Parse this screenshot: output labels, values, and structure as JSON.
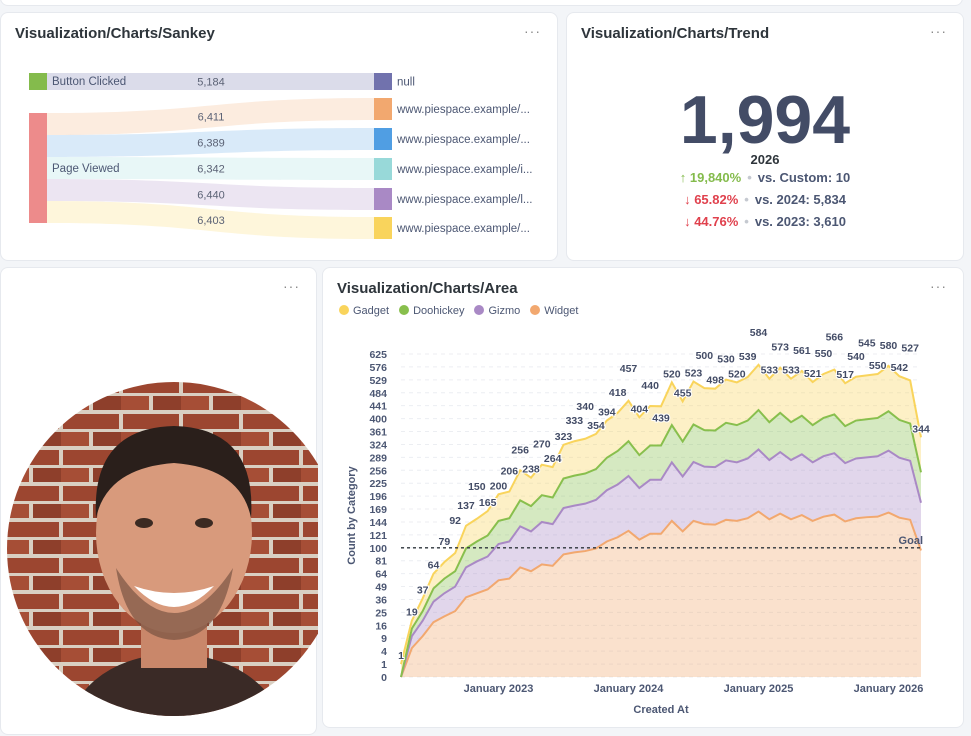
{
  "sankey": {
    "title": "Visualization/Charts/Sankey",
    "menu_icon": "ellipsis-icon",
    "sources": [
      {
        "label": "Button Clicked",
        "color": "#84bb4c"
      },
      {
        "label": "Page Viewed",
        "color": "#ed8b8b"
      }
    ],
    "targets": [
      {
        "label": "null",
        "color": "#7172ad"
      },
      {
        "label": "www.piespace.example/...",
        "color": "#f2a86f"
      },
      {
        "label": "www.piespace.example/...",
        "color": "#509ee3"
      },
      {
        "label": "www.piespace.example/i...",
        "color": "#98d9d9"
      },
      {
        "label": "www.piespace.example/l...",
        "color": "#a989c5"
      },
      {
        "label": "www.piespace.example/...",
        "color": "#f9d45c"
      }
    ],
    "links": [
      {
        "source": 0,
        "target": 0,
        "value": "5,184"
      },
      {
        "source": 1,
        "target": 1,
        "value": "6,411"
      },
      {
        "source": 1,
        "target": 2,
        "value": "6,389"
      },
      {
        "source": 1,
        "target": 3,
        "value": "6,342"
      },
      {
        "source": 1,
        "target": 4,
        "value": "6,440"
      },
      {
        "source": 1,
        "target": 5,
        "value": "6,403"
      }
    ]
  },
  "trend": {
    "title": "Visualization/Charts/Trend",
    "value": "1,994",
    "period": "2026",
    "comparisons": [
      {
        "direction": "up",
        "change": "19,840%",
        "label": "vs. Custom: 10",
        "color": "#84bb4c"
      },
      {
        "direction": "down",
        "change": "65.82%",
        "label": "vs. 2024: 5,834",
        "color": "#e0414d"
      },
      {
        "direction": "down",
        "change": "44.76%",
        "label": "vs. 2023: 3,610",
        "color": "#e0414d"
      }
    ]
  },
  "photo": {
    "alt": "portrait photo of smiling man in front of brick wall"
  },
  "area": {
    "title": "Visualization/Charts/Area"
  },
  "chart_data": {
    "type": "area",
    "stacked": true,
    "title": "Visualization/Charts/Area",
    "xlabel": "Created At",
    "ylabel": "Count by Category",
    "yscale": "sqrt",
    "ylim": [
      0,
      625
    ],
    "yticks": [
      0,
      1,
      4,
      9,
      16,
      25,
      36,
      49,
      64,
      81,
      100,
      121,
      144,
      169,
      196,
      225,
      256,
      289,
      324,
      361,
      400,
      441,
      484,
      529,
      576,
      625
    ],
    "xticks": [
      {
        "x": "2023-01",
        "label": "January 2023"
      },
      {
        "x": "2024-01",
        "label": "January 2024"
      },
      {
        "x": "2025-01",
        "label": "January 2025"
      },
      {
        "x": "2026-01",
        "label": "January 2026"
      }
    ],
    "grid": true,
    "legend": "top-left",
    "goal": {
      "value": 100,
      "label": "Goal"
    },
    "x": [
      "2022-04",
      "2022-05",
      "2022-06",
      "2022-07",
      "2022-08",
      "2022-09",
      "2022-10",
      "2022-11",
      "2022-12",
      "2023-01",
      "2023-02",
      "2023-03",
      "2023-04",
      "2023-05",
      "2023-06",
      "2023-07",
      "2023-08",
      "2023-09",
      "2023-10",
      "2023-11",
      "2023-12",
      "2024-01",
      "2024-02",
      "2024-03",
      "2024-04",
      "2024-05",
      "2024-06",
      "2024-07",
      "2024-08",
      "2024-09",
      "2024-10",
      "2024-11",
      "2024-12",
      "2025-01",
      "2025-02",
      "2025-03",
      "2025-04",
      "2025-05",
      "2025-06",
      "2025-07",
      "2025-08",
      "2025-09",
      "2025-10",
      "2025-11",
      "2025-12",
      "2026-01",
      "2026-02",
      "2026-03",
      "2026-04"
    ],
    "totals": [
      1,
      19,
      37,
      64,
      79,
      92,
      137,
      150,
      165,
      200,
      206,
      256,
      238,
      270,
      264,
      323,
      333,
      340,
      354,
      394,
      418,
      457,
      404,
      440,
      439,
      520,
      455,
      523,
      500,
      498,
      530,
      520,
      539,
      584,
      533,
      573,
      533,
      561,
      521,
      550,
      566,
      517,
      540,
      545,
      550,
      580,
      542,
      527,
      344
    ],
    "series": [
      {
        "name": "Widget",
        "color": "#f2a86f",
        "values": [
          0,
          5,
          10,
          18,
          22,
          26,
          38,
          42,
          46,
          56,
          58,
          72,
          67,
          76,
          74,
          90,
          93,
          95,
          99,
          110,
          117,
          128,
          113,
          123,
          123,
          146,
          127,
          146,
          140,
          139,
          148,
          146,
          151,
          164,
          149,
          160,
          149,
          157,
          146,
          154,
          158,
          145,
          151,
          153,
          154,
          162,
          152,
          148,
          96
        ]
      },
      {
        "name": "Gizmo",
        "color": "#a989c5",
        "values": [
          0,
          5,
          9,
          16,
          20,
          23,
          34,
          38,
          41,
          50,
          52,
          64,
          60,
          68,
          66,
          81,
          83,
          85,
          89,
          99,
          105,
          114,
          101,
          110,
          110,
          130,
          114,
          131,
          125,
          125,
          133,
          130,
          135,
          146,
          133,
          143,
          133,
          140,
          130,
          138,
          142,
          129,
          135,
          136,
          138,
          145,
          136,
          132,
          86
        ]
      },
      {
        "name": "Doohickey",
        "color": "#88bf4d",
        "values": [
          0,
          4,
          7,
          13,
          16,
          18,
          27,
          30,
          33,
          40,
          41,
          51,
          48,
          54,
          53,
          65,
          67,
          68,
          71,
          79,
          84,
          91,
          81,
          88,
          88,
          104,
          91,
          105,
          100,
          100,
          106,
          104,
          108,
          117,
          107,
          115,
          107,
          112,
          104,
          110,
          113,
          103,
          108,
          109,
          110,
          116,
          108,
          105,
          69
        ]
      },
      {
        "name": "Gadget",
        "color": "#f9d45c",
        "values": [
          1,
          5,
          11,
          17,
          21,
          25,
          38,
          40,
          45,
          54,
          55,
          69,
          63,
          72,
          71,
          87,
          90,
          92,
          95,
          106,
          112,
          124,
          109,
          119,
          118,
          140,
          123,
          141,
          135,
          134,
          143,
          140,
          145,
          157,
          144,
          155,
          144,
          152,
          141,
          148,
          153,
          140,
          146,
          147,
          148,
          157,
          146,
          142,
          93
        ]
      }
    ],
    "legend_order": [
      "Gadget",
      "Doohickey",
      "Gizmo",
      "Widget"
    ]
  }
}
